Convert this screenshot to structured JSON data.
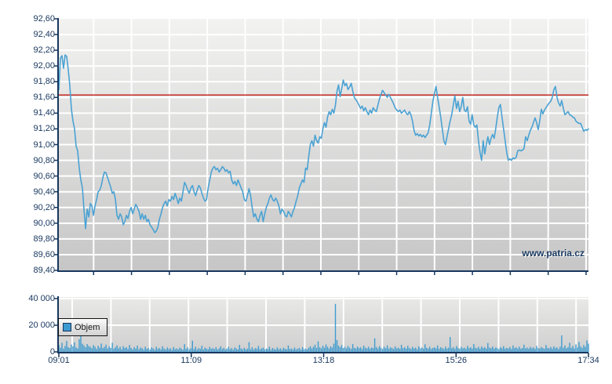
{
  "watermark": "www.patria.cz",
  "colors": {
    "axis": "#17375E",
    "label_text": "#17375E",
    "price_line": "#4AA2D3",
    "volume_bar": "#3F9CD0",
    "reference_line": "#C42A21",
    "gridline": "#FFFFFF"
  },
  "chart_data": [
    {
      "type": "line",
      "name": "price-intraday",
      "y_ticks": [
        "92,60",
        "92,40",
        "92,20",
        "92,00",
        "91,80",
        "91,60",
        "91,40",
        "91,20",
        "91,00",
        "90,80",
        "90,60",
        "90,40",
        "90,20",
        "90,00",
        "89,80",
        "89,60",
        "89,40"
      ],
      "ylim": [
        89.4,
        92.6
      ],
      "x_ticks": [
        "09:01",
        "11:09",
        "13:18",
        "15:26",
        "17:34"
      ],
      "x_start": "09:01",
      "x_end": "17:34",
      "grid": true,
      "reference_line": 91.63,
      "series": [
        {
          "name": "price",
          "sample_interval_min": 1.52,
          "values": [
            91.7,
            92.1,
            92.13,
            91.97,
            92.14,
            92.12,
            91.95,
            91.75,
            91.45,
            91.3,
            91.2,
            90.98,
            90.92,
            90.7,
            90.55,
            90.45,
            90.18,
            89.93,
            90.18,
            90.08,
            90.25,
            90.22,
            90.1,
            90.22,
            90.3,
            90.4,
            90.42,
            90.48,
            90.58,
            90.65,
            90.64,
            90.58,
            90.52,
            90.46,
            90.38,
            90.4,
            90.3,
            90.1,
            90.05,
            90.12,
            90.08,
            89.98,
            90.02,
            90.1,
            90.06,
            90.15,
            90.2,
            90.12,
            90.18,
            90.24,
            90.2,
            90.15,
            90.05,
            90.12,
            90.05,
            90.1,
            90.02,
            90.05,
            89.98,
            89.95,
            89.92,
            89.88,
            89.9,
            89.95,
            90.05,
            90.12,
            90.2,
            90.25,
            90.28,
            90.22,
            90.3,
            90.28,
            90.34,
            90.3,
            90.38,
            90.32,
            90.25,
            90.32,
            90.28,
            90.4,
            90.52,
            90.48,
            90.42,
            90.38,
            90.45,
            90.48,
            90.4,
            90.35,
            90.42,
            90.48,
            90.45,
            90.38,
            90.32,
            90.28,
            90.3,
            90.45,
            90.55,
            90.65,
            90.7,
            90.72,
            90.68,
            90.7,
            90.65,
            90.68,
            90.72,
            90.7,
            90.66,
            90.68,
            90.64,
            90.66,
            90.55,
            90.5,
            90.53,
            90.48,
            90.55,
            90.5,
            90.45,
            90.4,
            90.3,
            90.28,
            90.35,
            90.44,
            90.35,
            90.2,
            90.08,
            90.12,
            90.05,
            90.02,
            90.1,
            90.15,
            90.02,
            90.12,
            90.2,
            90.25,
            90.32,
            90.36,
            90.3,
            90.28,
            90.32,
            90.28,
            90.22,
            90.12,
            90.18,
            90.15,
            90.1,
            90.08,
            90.15,
            90.12,
            90.08,
            90.15,
            90.2,
            90.28,
            90.35,
            90.45,
            90.5,
            90.55,
            90.52,
            90.7,
            90.68,
            90.85,
            91.0,
            91.05,
            90.98,
            91.12,
            91.05,
            91.02,
            91.1,
            91.08,
            91.2,
            91.28,
            91.22,
            91.35,
            91.42,
            91.38,
            91.45,
            91.4,
            91.5,
            91.68,
            91.76,
            91.61,
            91.71,
            91.82,
            91.75,
            91.78,
            91.7,
            91.73,
            91.78,
            91.68,
            91.6,
            91.57,
            91.54,
            91.5,
            91.46,
            91.49,
            91.43,
            91.47,
            91.42,
            91.38,
            91.44,
            91.4,
            91.47,
            91.44,
            91.42,
            91.5,
            91.58,
            91.64,
            91.69,
            91.66,
            91.63,
            91.6,
            91.64,
            91.6,
            91.56,
            91.52,
            91.47,
            91.44,
            91.42,
            91.44,
            91.4,
            91.42,
            91.44,
            91.4,
            91.38,
            91.42,
            91.38,
            91.3,
            91.18,
            91.12,
            91.14,
            91.11,
            91.13,
            91.1,
            91.12,
            91.09,
            91.12,
            91.15,
            91.25,
            91.4,
            91.55,
            91.65,
            91.74,
            91.6,
            91.48,
            91.35,
            91.2,
            91.05,
            91.0,
            91.1,
            91.2,
            91.3,
            91.38,
            91.5,
            91.62,
            91.46,
            91.55,
            91.42,
            91.48,
            91.6,
            91.44,
            91.42,
            91.48,
            91.3,
            91.26,
            91.38,
            91.25,
            91.22,
            91.25,
            91.05,
            90.9,
            90.8,
            91.05,
            90.88,
            91.0,
            91.1,
            91.0,
            91.08,
            91.13,
            91.08,
            91.2,
            91.35,
            91.47,
            91.51,
            91.35,
            91.2,
            91.05,
            90.9,
            90.8,
            90.82,
            90.8,
            90.83,
            90.82,
            90.84,
            90.92,
            90.93,
            90.92,
            90.93,
            90.95,
            91.1,
            91.05,
            91.12,
            91.18,
            91.22,
            91.28,
            91.34,
            91.28,
            91.19,
            91.3,
            91.45,
            91.39,
            91.44,
            91.47,
            91.5,
            91.53,
            91.55,
            91.6,
            91.7,
            91.74,
            91.6,
            91.53,
            91.49,
            91.56,
            91.46,
            91.38,
            91.4,
            91.42,
            91.38,
            91.37,
            91.35,
            91.34,
            91.3,
            91.28,
            91.27,
            91.27,
            91.22,
            91.17,
            91.19,
            91.18,
            91.2
          ]
        }
      ]
    },
    {
      "type": "bar",
      "name": "volume-intraday",
      "legend_label": "Objem",
      "y_ticks": [
        "40 000",
        "20 000",
        "0"
      ],
      "ylim": [
        0,
        40000
      ],
      "x_ticks": [
        "09:01",
        "11:09",
        "13:18",
        "15:26",
        "17:34"
      ],
      "series": [
        {
          "name": "Objem",
          "sample_interval_min": 1.52,
          "values": [
            5200,
            3100,
            6800,
            2400,
            4500,
            8200,
            3600,
            2900,
            5500,
            4100,
            7200,
            3300,
            2600,
            9500,
            17200,
            6100,
            4800,
            3500,
            5900,
            4400,
            3800,
            2700,
            5100,
            3900,
            2200,
            4600,
            3100,
            6300,
            2800,
            3700,
            5400,
            2500,
            4200,
            3000,
            6800,
            2300,
            3400,
            4900,
            2600,
            3800,
            1900,
            4300,
            2800,
            3500,
            2100,
            5200,
            2900,
            1800,
            3600,
            2400,
            4700,
            2000,
            3200,
            2700,
            1600,
            3900,
            2300,
            2900,
            1700,
            3400,
            2600,
            1500,
            3800,
            2200,
            2800,
            1900,
            4200,
            2500,
            1700,
            3300,
            2100,
            2700,
            1400,
            3600,
            2000,
            2600,
            1800,
            3100,
            2400,
            1600,
            5800,
            2300,
            3400,
            1900,
            2700,
            8400,
            2100,
            3800,
            1700,
            2900,
            2200,
            4600,
            1800,
            3200,
            2500,
            1900,
            3700,
            2300,
            2800,
            2000,
            3500,
            1800,
            2600,
            4100,
            2200,
            3000,
            1700,
            2500,
            3900,
            2100,
            2800,
            1600,
            3300,
            2400,
            1900,
            5200,
            2600,
            2000,
            3100,
            1800,
            2400,
            7300,
            2000,
            3500,
            1700,
            2800,
            2300,
            4400,
            1900,
            2600,
            3200,
            1800,
            2500,
            2100,
            3800,
            1600,
            2900,
            2200,
            1700,
            3400,
            2000,
            2700,
            1500,
            3100,
            2300,
            1800,
            4800,
            2100,
            2600,
            1700,
            3300,
            1900,
            2400,
            2900,
            1600,
            3600,
            2000,
            2500,
            1800,
            3000,
            4200,
            2600,
            3800,
            5400,
            2900,
            7800,
            3400,
            2700,
            4600,
            3100,
            5600,
            3800,
            2500,
            4100,
            3300,
            6200,
            36000,
            8800,
            4700,
            3500,
            5100,
            2900,
            3700,
            2600,
            4400,
            3200,
            2300,
            5800,
            3000,
            2500,
            4000,
            2800,
            3500,
            2200,
            4700,
            3100,
            2600,
            3900,
            2400,
            3300,
            2800,
            10200,
            3600,
            2500,
            4300,
            3000,
            2200,
            3800,
            2700,
            4900,
            2400,
            3400,
            2900,
            2100,
            4100,
            2600,
            3200,
            2300,
            5300,
            2800,
            3500,
            2400,
            4600,
            2900,
            2200,
            3700,
            2600,
            3100,
            2000,
            4200,
            2700,
            3300,
            2400,
            5700,
            3000,
            2500,
            3800,
            2200,
            2900,
            3400,
            2600,
            4800,
            2300,
            3500,
            2800,
            2100,
            3900,
            2500,
            3200,
            11200,
            2700,
            3600,
            2300,
            4400,
            2900,
            2400,
            3700,
            2600,
            3100,
            2200,
            4500,
            2800,
            3400,
            2500,
            5900,
            3100,
            2600,
            3800,
            2300,
            4100,
            2900,
            3500,
            2400,
            6600,
            3200,
            2700,
            4000,
            2500,
            3300,
            2800,
            2100,
            3600,
            2700,
            4300,
            2400,
            3000,
            2600,
            3700,
            2200,
            4800,
            2800,
            3400,
            2500,
            3900,
            2300,
            2900,
            5400,
            2600,
            3200,
            2400,
            3800,
            2700,
            3300,
            2200,
            4500,
            2900,
            2500,
            3600,
            2800,
            2300,
            5100,
            3000,
            2600,
            3700,
            2400,
            4200,
            2800,
            3400,
            2100,
            3900,
            12400,
            3100,
            4800,
            2700,
            3500,
            6800,
            3000,
            4400,
            2600,
            5600,
            3300,
            7400,
            4100,
            2900,
            5200,
            3700,
            8600,
            6200
          ]
        }
      ]
    }
  ]
}
